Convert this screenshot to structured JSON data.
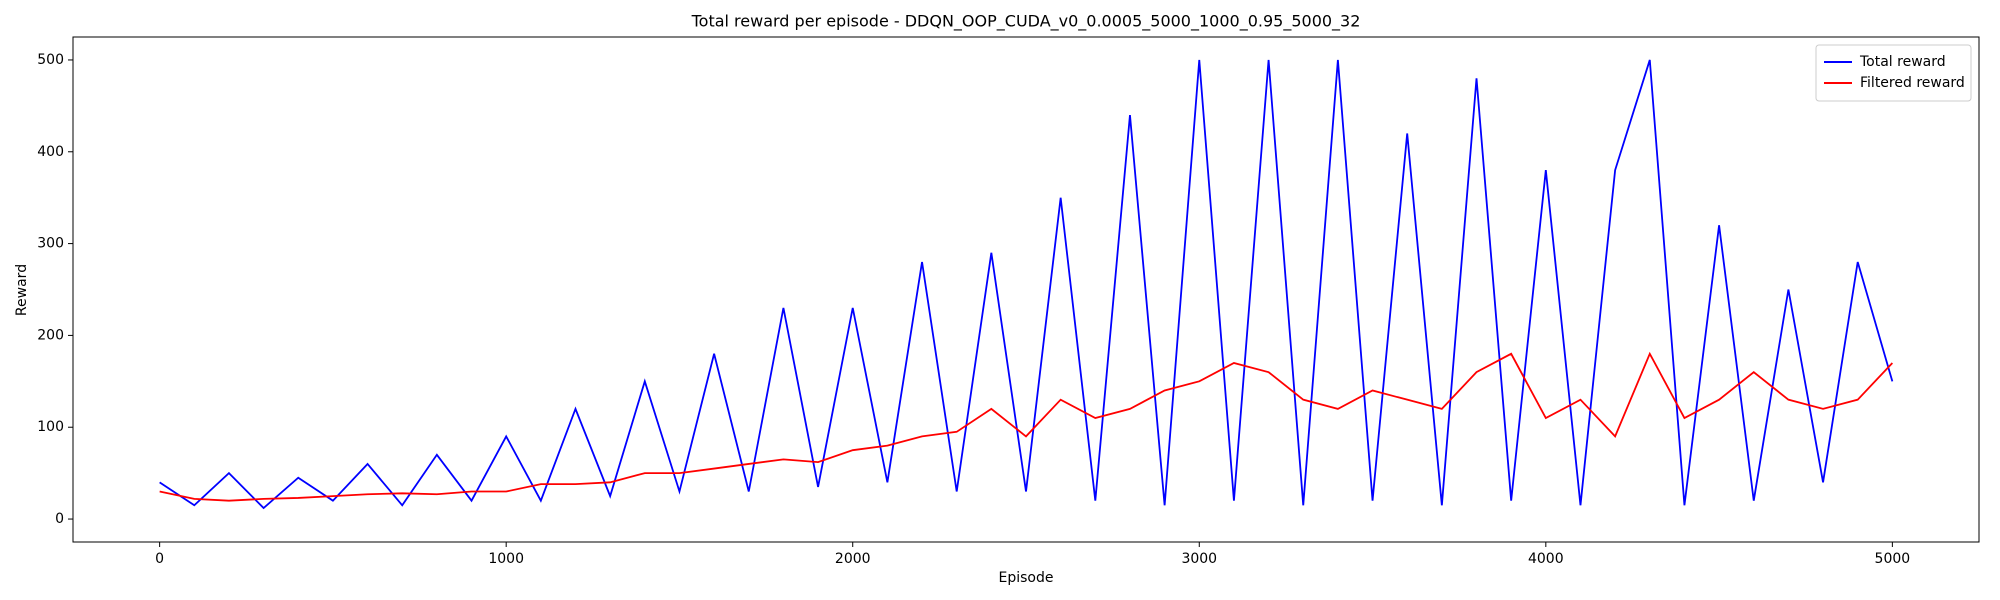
{
  "chart_data": {
    "type": "line",
    "title": "Total reward per episode - DDQN_OOP_CUDA_v0_0.0005_5000_1000_0.95_5000_32",
    "x_label": "Episode",
    "y_label": "Reward",
    "x": [
      0,
      100,
      200,
      300,
      400,
      500,
      600,
      700,
      800,
      900,
      1000,
      1100,
      1200,
      1300,
      1400,
      1500,
      1600,
      1700,
      1800,
      1900,
      2000,
      2100,
      2200,
      2300,
      2400,
      2500,
      2600,
      2700,
      2800,
      2900,
      3000,
      3100,
      3200,
      3300,
      3400,
      3500,
      3600,
      3700,
      3800,
      3900,
      4000,
      4100,
      4200,
      4300,
      4400,
      4500,
      4600,
      4700,
      4800,
      4900,
      5000
    ],
    "series": [
      {
        "name": "Total reward",
        "color": "#0000ff",
        "values": [
          40,
          15,
          50,
          12,
          45,
          20,
          60,
          15,
          70,
          20,
          90,
          20,
          120,
          25,
          150,
          30,
          180,
          30,
          230,
          35,
          230,
          40,
          280,
          30,
          290,
          30,
          350,
          20,
          440,
          15,
          500,
          20,
          500,
          15,
          500,
          20,
          420,
          15,
          480,
          20,
          380,
          15,
          380,
          500,
          15,
          320,
          20,
          250,
          40,
          280,
          150
        ]
      },
      {
        "name": "Filtered reward",
        "color": "#ff0000",
        "values": [
          30,
          22,
          20,
          22,
          23,
          25,
          27,
          28,
          27,
          30,
          30,
          38,
          38,
          40,
          50,
          50,
          55,
          60,
          65,
          62,
          75,
          80,
          90,
          95,
          120,
          90,
          130,
          110,
          120,
          140,
          150,
          170,
          160,
          130,
          120,
          140,
          130,
          120,
          160,
          180,
          110,
          130,
          90,
          180,
          110,
          130,
          160,
          130,
          120,
          130,
          170
        ]
      }
    ],
    "xlim": [
      -250,
      5250
    ],
    "ylim": [
      -25,
      525
    ],
    "xticks": [
      0,
      1000,
      2000,
      3000,
      4000,
      5000
    ],
    "yticks": [
      0,
      100,
      200,
      300,
      400,
      500
    ],
    "legend": "upper right"
  }
}
